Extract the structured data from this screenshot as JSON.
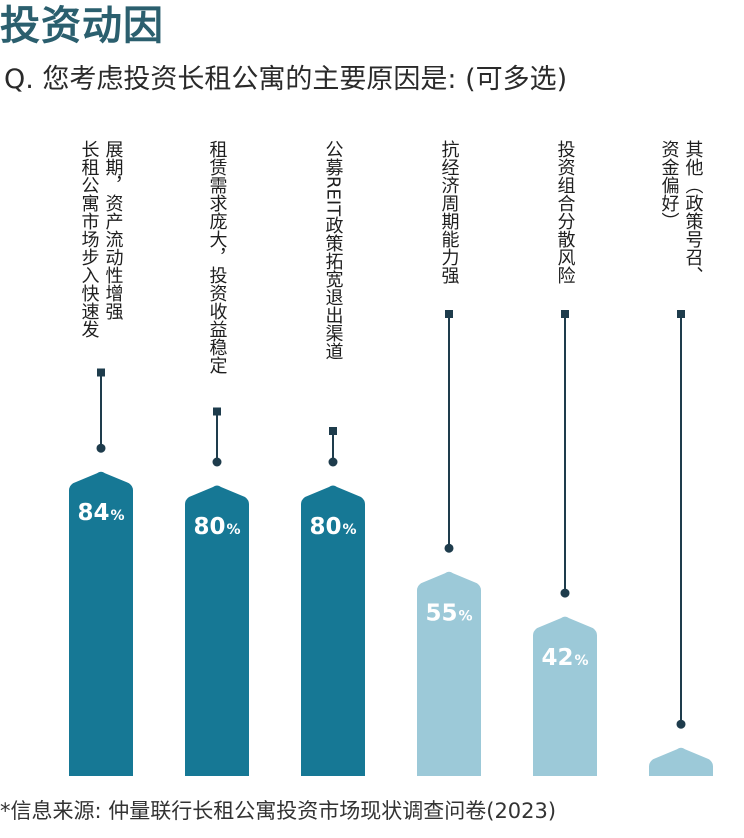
{
  "header": {
    "title": "投资动因",
    "subtitle": "Q. 您考虑投资长租公寓的主要原因是: (可多选)"
  },
  "footer": {
    "source": "*信息来源: 仲量联行长租公寓投资市场现状调查问卷(2023)"
  },
  "colors": {
    "dark_bar": "#167895",
    "light_bar": "#9cc9d8",
    "connector": "#1e3c4c",
    "value_text": "#ffffff"
  },
  "chart_data": {
    "type": "bar",
    "title": "投资动因",
    "categories": [
      "长租公寓市场步入快速发展期，资产流动性增强",
      "租赁需求庞大，投资收益稳定",
      "公募REIT政策拓宽退出渠道",
      "抗经济周期能力强",
      "投资组合分散风险",
      "其他（政策号召、资金偏好）"
    ],
    "label_columns": [
      [
        "展期，资产流动性增强",
        "长租公寓市场步入快速发"
      ],
      [
        "租赁需求庞大，投资收益稳定"
      ],
      [
        "公募REIT政策拓宽退出渠道"
      ],
      [
        "抗经济周期能力强"
      ],
      [
        "投资组合分散风险"
      ],
      [
        "其他（政策号召、",
        "资金偏好）"
      ]
    ],
    "values": [
      84,
      80,
      80,
      55,
      42,
      4
    ],
    "value_labels": [
      "84",
      "80",
      "80",
      "55",
      "42",
      "4"
    ],
    "unit": "%",
    "highlight": [
      true,
      true,
      true,
      false,
      false,
      false
    ],
    "ylim": [
      0,
      100
    ]
  }
}
